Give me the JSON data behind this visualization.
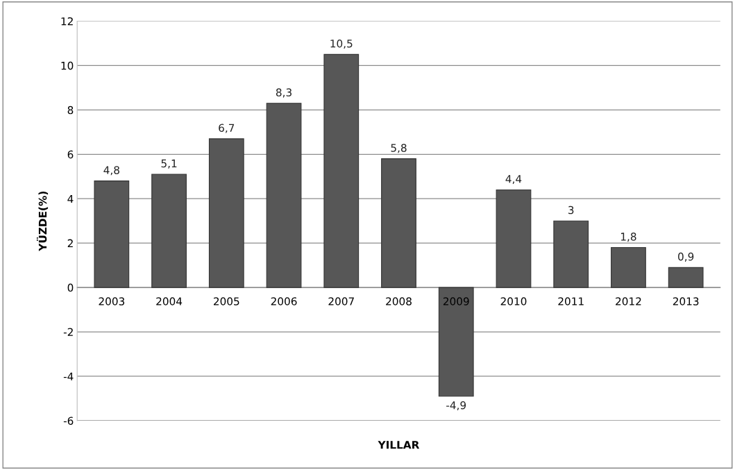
{
  "chart_data": {
    "type": "bar",
    "xlabel": "YILLAR",
    "ylabel": "YÜZDE(%)",
    "categories": [
      "2003",
      "2004",
      "2005",
      "2006",
      "2007",
      "2008",
      "2009",
      "2010",
      "2011",
      "2012",
      "2013"
    ],
    "values": [
      4.8,
      5.1,
      6.7,
      8.3,
      10.5,
      5.8,
      -4.9,
      4.4,
      3,
      1.8,
      0.9
    ],
    "value_labels": [
      "4,8",
      "5,1",
      "6,7",
      "8,3",
      "10,5",
      "5,8",
      "-4,9",
      "4,4",
      "3",
      "1,8",
      "0,9"
    ],
    "color": "#575757",
    "ylim": [
      -6,
      12
    ],
    "yticks": [
      -6,
      -4,
      -2,
      0,
      2,
      4,
      6,
      8,
      10,
      12
    ],
    "grid": "y",
    "legend": false
  }
}
